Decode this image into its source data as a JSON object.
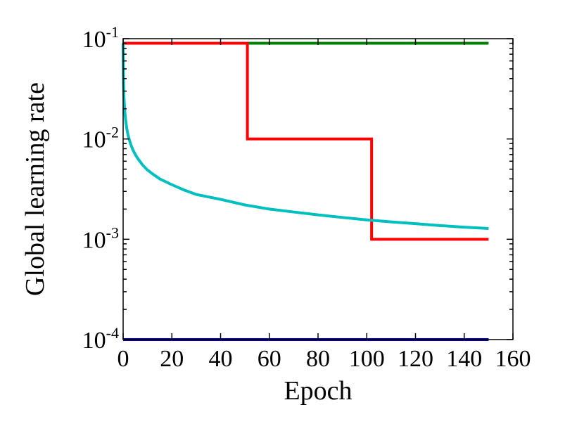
{
  "chart_data": {
    "type": "line",
    "title": "",
    "xlabel": "Epoch",
    "ylabel": "Global learning rate",
    "xlim": [
      0,
      160
    ],
    "ylim": [
      0.0001,
      0.1
    ],
    "yscale": "log",
    "grid": false,
    "x_ticks": [
      {
        "value": 0,
        "label": "0"
      },
      {
        "value": 20,
        "label": "20"
      },
      {
        "value": 40,
        "label": "40"
      },
      {
        "value": 60,
        "label": "60"
      },
      {
        "value": 80,
        "label": "80"
      },
      {
        "value": 100,
        "label": "100"
      },
      {
        "value": 120,
        "label": "120"
      },
      {
        "value": 140,
        "label": "140"
      },
      {
        "value": 160,
        "label": "160"
      }
    ],
    "y_ticks": [
      {
        "value": 0.1,
        "base": "10",
        "exp": "-1"
      },
      {
        "value": 0.01,
        "base": "10",
        "exp": "-2"
      },
      {
        "value": 0.001,
        "base": "10",
        "exp": "-3"
      },
      {
        "value": 0.0001,
        "base": "10",
        "exp": "-4"
      }
    ],
    "series": [
      {
        "color": "#008000",
        "x": [
          0,
          150
        ],
        "y": [
          0.09,
          0.09
        ]
      },
      {
        "color": "#ff0000",
        "x": [
          0,
          51,
          51,
          102,
          102,
          150
        ],
        "y": [
          0.09,
          0.09,
          0.01,
          0.01,
          0.001,
          0.001
        ]
      },
      {
        "color": "#00bfbf",
        "x": [
          0,
          0.05,
          0.1,
          0.2,
          0.3,
          0.5,
          0.75,
          1,
          1.5,
          2,
          3,
          4,
          5,
          6,
          8,
          10,
          12,
          15,
          20,
          25,
          30,
          40,
          50,
          60,
          70,
          80,
          90,
          100,
          110,
          120,
          130,
          140,
          150
        ],
        "y": [
          0.09,
          0.07,
          0.05,
          0.035,
          0.028,
          0.0221,
          0.0179,
          0.0156,
          0.0127,
          0.011,
          0.009,
          0.0078,
          0.007,
          0.0064,
          0.0055,
          0.0049,
          0.0045,
          0.004,
          0.0035,
          0.0031,
          0.0028,
          0.0025,
          0.0022,
          0.002,
          0.00187,
          0.00175,
          0.00165,
          0.00156,
          0.00149,
          0.00143,
          0.00137,
          0.00132,
          0.00128
        ]
      },
      {
        "color": "#0000cc",
        "x": [
          0,
          150
        ],
        "y": [
          0.0001,
          0.0001
        ]
      }
    ]
  }
}
